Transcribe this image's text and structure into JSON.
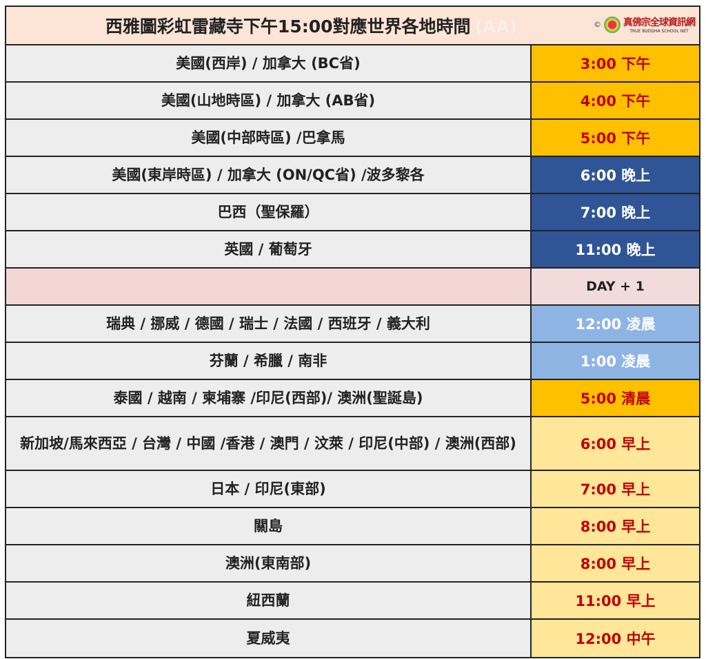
{
  "title": "西雅圖彩虹雷藏寺下午15:00對應世界各地時間",
  "title_mark": "(AA)",
  "logo": {
    "copyright": "©",
    "name_zh": "真佛宗全球資訊網",
    "name_en": "TRUE BUDDHA SCHOOL NET"
  },
  "rows": [
    {
      "region": "美國(西岸) / 加拿大 (BC省)",
      "time": "3:00 下午",
      "style": "gold"
    },
    {
      "region": "美國(山地時區) / 加拿大 (AB省)",
      "time": "4:00 下午",
      "style": "gold"
    },
    {
      "region": "美國(中部時區) /巴拿馬",
      "time": "5:00 下午",
      "style": "gold"
    },
    {
      "region": "美國(東岸時區) / 加拿大 (ON/QC省) /波多黎各",
      "time": "6:00 晚上",
      "style": "navy"
    },
    {
      "region": "巴西（聖保羅）",
      "time": "7:00 晚上",
      "style": "navy"
    },
    {
      "region": "英國 / 葡萄牙",
      "time": "11:00 晚上",
      "style": "navy"
    },
    {
      "region": "",
      "time": "DAY + 1",
      "style": "pink"
    },
    {
      "region": "瑞典 / 挪威 / 德國 / 瑞士 / 法國 / 西班牙 / 義大利",
      "time": "12:00 凌晨",
      "style": "lblue"
    },
    {
      "region": "芬蘭 / 希臘 / 南非",
      "time": "1:00 凌晨",
      "style": "lblue"
    },
    {
      "region": "泰國 / 越南 / 柬埔寨 /印尼(西部)/ 澳洲(聖誕島)",
      "time": "5:00 清晨",
      "style": "gold"
    },
    {
      "region": "新加坡/馬來西亞 / 台灣 / 中國 /香港 / 澳門 / 汶萊 / 印尼(中部) / 澳洲(西部)",
      "time": "6:00 早上",
      "style": "ly"
    },
    {
      "region": "日本 /  印尼(東部)",
      "time": "7:00 早上",
      "style": "ly"
    },
    {
      "region": "關島",
      "time": "8:00 早上",
      "style": "ly"
    },
    {
      "region": "澳洲(東南部)",
      "time": "8:00 早上",
      "style": "ly"
    },
    {
      "region": "紐西蘭",
      "time": "11:00 早上",
      "style": "ly"
    },
    {
      "region": "夏威夷",
      "time": "12:00 中午",
      "style": "ly"
    }
  ]
}
